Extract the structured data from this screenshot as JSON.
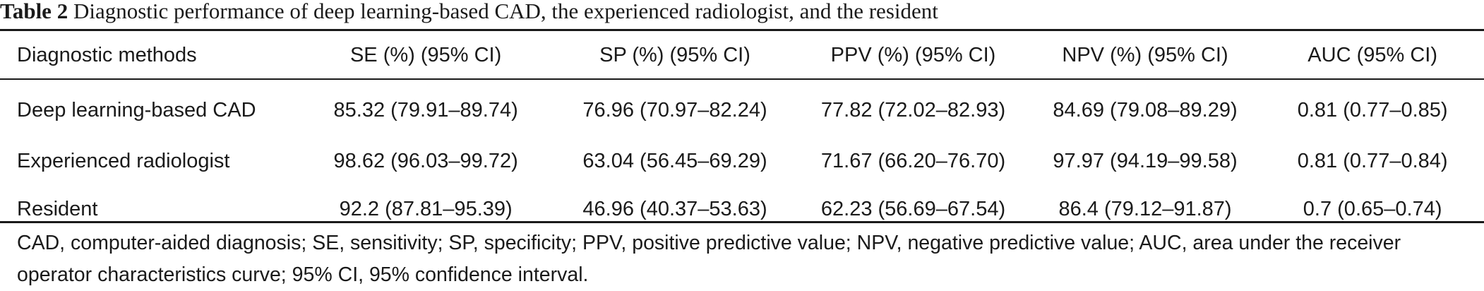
{
  "caption": {
    "label": "Table 2",
    "text": "Diagnostic performance of deep learning-based CAD, the experienced radiologist, and the resident"
  },
  "table": {
    "headers": [
      "Diagnostic methods",
      "SE (%) (95% CI)",
      "SP (%) (95% CI)",
      "PPV (%) (95% CI)",
      "NPV (%) (95% CI)",
      "AUC (95% CI)"
    ],
    "rows": [
      [
        "Deep learning-based CAD",
        "85.32 (79.91–89.74)",
        "76.96 (70.97–82.24)",
        "77.82 (72.02–82.93)",
        "84.69 (79.08–89.29)",
        "0.81 (0.77–0.85)"
      ],
      [
        "Experienced radiologist",
        "98.62 (96.03–99.72)",
        "63.04 (56.45–69.29)",
        "71.67 (66.20–76.70)",
        "97.97 (94.19–99.58)",
        "0.81 (0.77–0.84)"
      ],
      [
        "Resident",
        "92.2 (87.81–95.39)",
        "46.96 (40.37–53.63)",
        "62.23 (56.69–67.54)",
        "86.4 (79.12–91.87)",
        "0.7 (0.65–0.74)"
      ]
    ]
  },
  "footnote": "CAD, computer-aided diagnosis; SE, sensitivity; SP, specificity; PPV, positive predictive value; NPV, negative predictive value; AUC, area under the receiver operator characteristics curve; 95% CI, 95% confidence interval."
}
